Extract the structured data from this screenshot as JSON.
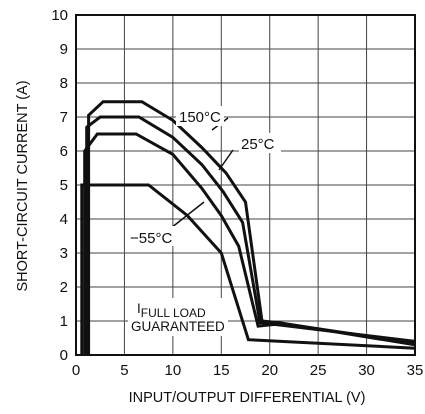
{
  "chart_data": {
    "type": "line",
    "title": "",
    "xlabel": "INPUT/OUTPUT DIFFERENTIAL (V)",
    "ylabel": "SHORT-CIRCUIT CURRENT (A)",
    "xlim": [
      0,
      35
    ],
    "ylim": [
      0,
      10
    ],
    "xticks": [
      0,
      5,
      10,
      15,
      20,
      25,
      30,
      35
    ],
    "yticks": [
      0,
      1,
      2,
      3,
      4,
      5,
      6,
      7,
      8,
      9,
      10
    ],
    "grid": true,
    "series": [
      {
        "name": "150°C",
        "x": [
          1.3,
          1.3,
          2.8,
          6.8,
          10,
          13,
          15.5,
          17.5,
          19.2,
          21,
          35
        ],
        "y": [
          0,
          7.05,
          7.45,
          7.45,
          6.9,
          6.1,
          5.35,
          4.5,
          1.0,
          0.95,
          0.3
        ]
      },
      {
        "name": "25°C",
        "x": [
          1.1,
          1.1,
          2.5,
          6.5,
          10,
          13,
          15.2,
          17.2,
          19.0,
          20.8,
          35
        ],
        "y": [
          0,
          6.7,
          7.0,
          7.0,
          6.4,
          5.6,
          4.8,
          3.9,
          0.95,
          0.95,
          0.35
        ]
      },
      {
        "name": "−55°C",
        "x": [
          0.9,
          0.9,
          2.2,
          6.2,
          10,
          13,
          15.0,
          16.8,
          18.8,
          20.5,
          35
        ],
        "y": [
          0,
          6.0,
          6.5,
          6.5,
          5.9,
          4.9,
          4.1,
          3.2,
          0.85,
          0.9,
          0.4
        ]
      },
      {
        "name": "IFULL LOAD GUARANTEED",
        "x": [
          0.6,
          0.6,
          1.0,
          7.5,
          11.5,
          15.0,
          17.8,
          35
        ],
        "y": [
          0,
          5.0,
          5.0,
          5.0,
          4.1,
          3.0,
          0.45,
          0.2
        ]
      }
    ],
    "annotations": {
      "t150": "150°C",
      "t25": "25°C",
      "tm55": "−55°C",
      "full_load_main": "I",
      "full_load_sub": "FULL LOAD",
      "guaranteed": "GUARANTEED"
    }
  }
}
